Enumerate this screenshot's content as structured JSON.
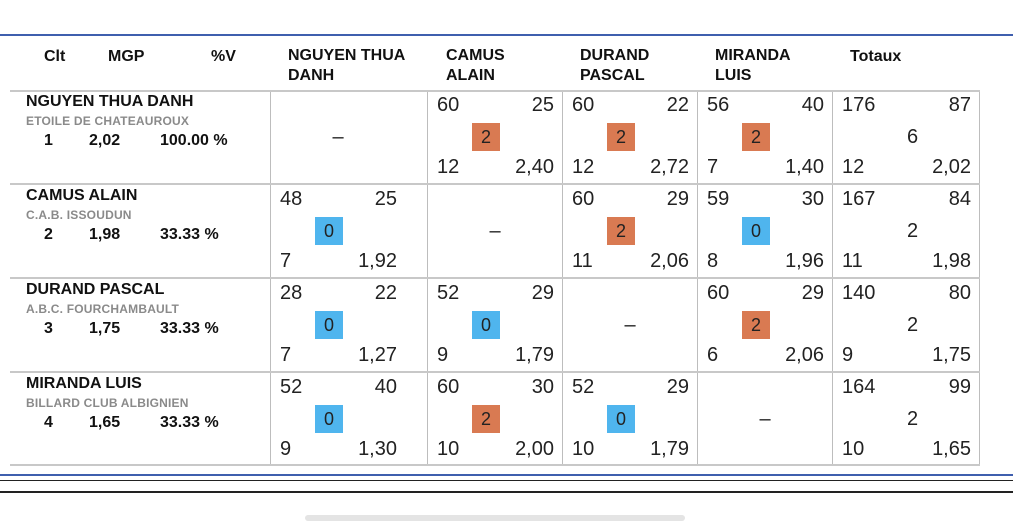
{
  "headers": {
    "clt": "Clt",
    "mgp": "MGP",
    "pctv": "%V",
    "player_cols": [
      "NGUYEN THUA\nDANH",
      "CAMUS\nALAIN",
      "DURAND\nPASCAL",
      "MIRANDA\nLUIS"
    ],
    "totaux": "Totaux"
  },
  "players": [
    {
      "name": "NGUYEN THUA DANH",
      "club": "ETOILE DE CHATEAUROUX",
      "rank": "1",
      "mgp": "2,02",
      "pct": "100.00 %"
    },
    {
      "name": "CAMUS ALAIN",
      "club": "C.A.B. ISSOUDUN",
      "rank": "2",
      "mgp": "1,98",
      "pct": "33.33 %"
    },
    {
      "name": "DURAND PASCAL",
      "club": "A.B.C. FOURCHAMBAULT",
      "rank": "3",
      "mgp": "1,75",
      "pct": "33.33 %"
    },
    {
      "name": "MIRANDA LUIS",
      "club": "BILLARD CLUB ALBIGNIEN",
      "rank": "4",
      "mgp": "1,65",
      "pct": "33.33 %"
    }
  ],
  "self_symbol": "–",
  "results": [
    [
      null,
      {
        "pts": "60",
        "opp": "25",
        "badge": "2",
        "inn": "12",
        "avg": "2,40"
      },
      {
        "pts": "60",
        "opp": "22",
        "badge": "2",
        "inn": "12",
        "avg": "2,72"
      },
      {
        "pts": "56",
        "opp": "40",
        "badge": "2",
        "inn": "7",
        "avg": "1,40"
      }
    ],
    [
      {
        "pts": "48",
        "opp": "25",
        "badge": "0",
        "inn": "7",
        "avg": "1,92"
      },
      null,
      {
        "pts": "60",
        "opp": "29",
        "badge": "2",
        "inn": "11",
        "avg": "2,06"
      },
      {
        "pts": "59",
        "opp": "30",
        "badge": "0",
        "inn": "8",
        "avg": "1,96"
      }
    ],
    [
      {
        "pts": "28",
        "opp": "22",
        "badge": "0",
        "inn": "7",
        "avg": "1,27"
      },
      {
        "pts": "52",
        "opp": "29",
        "badge": "0",
        "inn": "9",
        "avg": "1,79"
      },
      null,
      {
        "pts": "60",
        "opp": "29",
        "badge": "2",
        "inn": "6",
        "avg": "2,06"
      }
    ],
    [
      {
        "pts": "52",
        "opp": "40",
        "badge": "0",
        "inn": "9",
        "avg": "1,30"
      },
      {
        "pts": "60",
        "opp": "30",
        "badge": "2",
        "inn": "10",
        "avg": "2,00"
      },
      {
        "pts": "52",
        "opp": "29",
        "badge": "0",
        "inn": "10",
        "avg": "1,79"
      },
      null
    ]
  ],
  "totals": [
    {
      "pts": "176",
      "opp": "87",
      "match_pts": "6",
      "inn": "12",
      "avg": "2,02"
    },
    {
      "pts": "167",
      "opp": "84",
      "match_pts": "2",
      "inn": "11",
      "avg": "1,98"
    },
    {
      "pts": "140",
      "opp": "80",
      "match_pts": "2",
      "inn": "9",
      "avg": "1,75"
    },
    {
      "pts": "164",
      "opp": "99",
      "match_pts": "2",
      "inn": "10",
      "avg": "1,65"
    }
  ],
  "colors": {
    "win_badge": "#d97a52",
    "loss_badge": "#4fb5ee",
    "accent_line": "#3f5fae",
    "grid_line": "#bdbdbd",
    "club_text": "#8a8a8a"
  }
}
